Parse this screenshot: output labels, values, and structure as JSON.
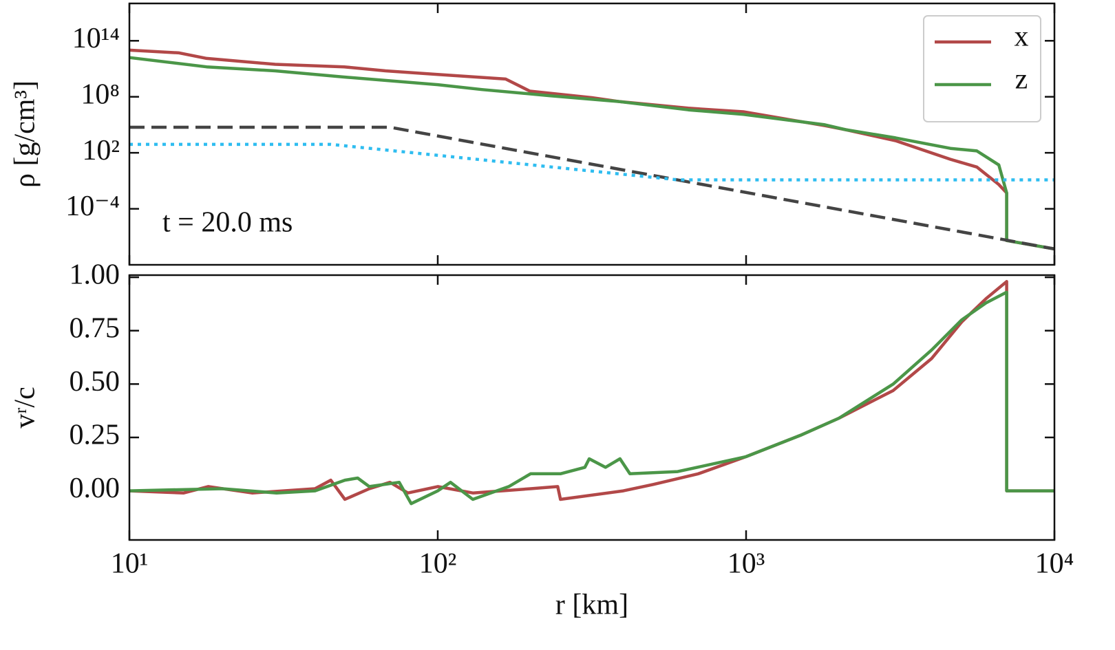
{
  "chart_data": [
    {
      "type": "line",
      "log_x": true,
      "log_y": true,
      "ylabel": "ρ [g/cm³]",
      "annotation": "t = 20.0 ms",
      "legend": "upper right",
      "xlim": [
        10,
        10000
      ],
      "ylim": [
        1e-10,
        1e+18
      ],
      "yticks": [
        {
          "value": 100000000000000.0,
          "label": "10¹⁴"
        },
        {
          "value": 100000000.0,
          "label": "10⁸"
        },
        {
          "value": 100,
          "label": "10²"
        },
        {
          "value": 0.0001,
          "label": "10⁻⁴"
        }
      ],
      "series": [
        {
          "name": "x",
          "color": "#b24848",
          "style": "solid",
          "x": [
            10,
            14.5,
            17.8,
            29.7,
            49.7,
            67.7,
            100,
            166,
            199,
            316,
            390,
            650,
            980,
            1800,
            2100,
            3050,
            4600,
            5600,
            6600,
            7000,
            7000,
            10000
          ],
          "values": [
            10000000000000.0,
            5000000000000.0,
            1300000000000.0,
            300000000000.0,
            160000000000.0,
            60000000000.0,
            25000000000.0,
            8000000000.0,
            400000000.0,
            80000000.0,
            30000000.0,
            6000000.0,
            2500000.0,
            80000.0,
            30000.0,
            2000.0,
            20,
            3,
            0.04,
            0.005,
            4e-08,
            5e-09
          ]
        },
        {
          "name": "z",
          "color": "#4b9648",
          "style": "solid",
          "x": [
            10,
            17.8,
            29.7,
            49.7,
            100,
            139,
            232,
            390,
            650,
            980,
            1800,
            2100,
            3050,
            4600,
            5600,
            6600,
            7000,
            7000,
            10000
          ],
          "values": [
            1600000000000.0,
            160000000000.0,
            60000000000.0,
            13000000000.0,
            2000000000.0,
            600000000.0,
            130000000.0,
            30000000.0,
            4000000.0,
            1300000.0,
            100000.0,
            30000.0,
            4000.0,
            300,
            160,
            5,
            0.005,
            4e-08,
            5e-09
          ]
        },
        {
          "color": "#444444",
          "style": "dashed",
          "x": [
            10,
            70,
            10000
          ],
          "values": [
            55000,
            55000,
            5e-09
          ]
        },
        {
          "color": "#2fbdf0",
          "style": "dotted",
          "x": [
            10,
            45,
            600,
            10000
          ],
          "values": [
            800,
            800,
            0.125,
            0.125
          ]
        }
      ]
    },
    {
      "type": "line",
      "log_x": true,
      "log_y": false,
      "xlabel": "r [km]",
      "ylabel": "vʳ/c",
      "xlim": [
        10,
        10000
      ],
      "ylim": [
        -0.23,
        1.01
      ],
      "xticks": [
        {
          "value": 10,
          "label": "10¹"
        },
        {
          "value": 100,
          "label": "10²"
        },
        {
          "value": 1000,
          "label": "10³"
        },
        {
          "value": 10000,
          "label": "10⁴"
        }
      ],
      "yticks": [
        {
          "value": 0,
          "label": "0.00"
        },
        {
          "value": 0.25,
          "label": "0.25"
        },
        {
          "value": 0.5,
          "label": "0.50"
        },
        {
          "value": 0.75,
          "label": "0.75"
        },
        {
          "value": 1,
          "label": "1.00"
        }
      ],
      "series": [
        {
          "name": "x",
          "color": "#b24848",
          "style": "solid",
          "x": [
            10,
            15,
            18,
            25,
            40,
            45,
            50,
            60,
            70,
            80,
            100,
            130,
            200,
            245,
            250,
            400,
            500,
            700,
            1000,
            1500,
            2000,
            3000,
            4000,
            5000,
            6000,
            7000,
            7000,
            10000
          ],
          "values": [
            0,
            -0.01,
            0.02,
            -0.01,
            0.01,
            0.05,
            -0.04,
            0.01,
            0.04,
            -0.01,
            0.02,
            -0.01,
            0.01,
            0.02,
            -0.04,
            0,
            0.03,
            0.08,
            0.16,
            0.26,
            0.34,
            0.47,
            0.62,
            0.79,
            0.9,
            0.98,
            0,
            0
          ]
        },
        {
          "name": "z",
          "color": "#4b9648",
          "style": "solid",
          "x": [
            10,
            20,
            30,
            40,
            50,
            55,
            60,
            75,
            82,
            100,
            110,
            130,
            170,
            200,
            250,
            300,
            310,
            350,
            390,
            420,
            600,
            1000,
            1500,
            2000,
            3000,
            4000,
            5000,
            6000,
            7000,
            7000,
            10000
          ],
          "values": [
            0,
            0.01,
            -0.01,
            0,
            0.05,
            0.06,
            0.02,
            0.04,
            -0.06,
            0,
            0.04,
            -0.04,
            0.02,
            0.08,
            0.08,
            0.11,
            0.15,
            0.11,
            0.15,
            0.08,
            0.09,
            0.16,
            0.26,
            0.34,
            0.5,
            0.66,
            0.8,
            0.88,
            0.93,
            0,
            0
          ]
        }
      ]
    }
  ]
}
